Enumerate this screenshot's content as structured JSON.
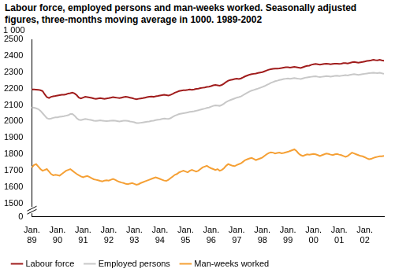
{
  "chart_data": {
    "type": "line",
    "title": "Labour force, employed persons and man-weeks worked. Seasonally adjusted figures, three-months moving average in 1000. 1989-2002",
    "y_label": "1 000",
    "categories": [
      "Jan. 89",
      null,
      null,
      null,
      null,
      null,
      null,
      null,
      null,
      null,
      null,
      null,
      "Jan. 90",
      null,
      null,
      null,
      null,
      null,
      null,
      null,
      null,
      null,
      null,
      null,
      "Jan. 91",
      null,
      null,
      null,
      null,
      null,
      null,
      null,
      null,
      null,
      null,
      null,
      "Jan. 92",
      null,
      null,
      null,
      null,
      null,
      null,
      null,
      null,
      null,
      null,
      null,
      "Jan. 93",
      null,
      null,
      null,
      null,
      null,
      null,
      null,
      null,
      null,
      null,
      null,
      "Jan. 94",
      null,
      null,
      null,
      null,
      null,
      null,
      null,
      null,
      null,
      null,
      null,
      "Jan. 95",
      null,
      null,
      null,
      null,
      null,
      null,
      null,
      null,
      null,
      null,
      null,
      "Jan. 96",
      null,
      null,
      null,
      null,
      null,
      null,
      null,
      null,
      null,
      null,
      null,
      "Jan. 97",
      null,
      null,
      null,
      null,
      null,
      null,
      null,
      null,
      null,
      null,
      null,
      "Jan. 98",
      null,
      null,
      null,
      null,
      null,
      null,
      null,
      null,
      null,
      null,
      null,
      "Jan. 99",
      null,
      null,
      null,
      null,
      null,
      null,
      null,
      null,
      null,
      null,
      null,
      "Jan. 00",
      null,
      null,
      null,
      null,
      null,
      null,
      null,
      null,
      null,
      null,
      null,
      "Jan. 01",
      null,
      null,
      null,
      null,
      null,
      null,
      null,
      null,
      null,
      null,
      null,
      "Jan. 02",
      null,
      null,
      null,
      null,
      null,
      null,
      null,
      null,
      null
    ],
    "series": [
      {
        "name": "Labour force",
        "color": "#a01c1c",
        "values": [
          2195,
          2195,
          2194,
          2193,
          2190,
          2185,
          2165,
          2148,
          2143,
          2150,
          2153,
          2155,
          2158,
          2160,
          2162,
          2163,
          2165,
          2170,
          2172,
          2175,
          2170,
          2160,
          2145,
          2140,
          2145,
          2150,
          2148,
          2146,
          2143,
          2140,
          2138,
          2140,
          2142,
          2140,
          2138,
          2140,
          2142,
          2145,
          2148,
          2146,
          2144,
          2142,
          2145,
          2148,
          2150,
          2148,
          2145,
          2142,
          2138,
          2135,
          2138,
          2140,
          2142,
          2145,
          2148,
          2150,
          2152,
          2150,
          2153,
          2155,
          2158,
          2160,
          2162,
          2160,
          2158,
          2162,
          2168,
          2175,
          2180,
          2185,
          2188,
          2190,
          2190,
          2192,
          2195,
          2193,
          2195,
          2198,
          2200,
          2203,
          2205,
          2207,
          2210,
          2212,
          2215,
          2220,
          2222,
          2220,
          2218,
          2222,
          2230,
          2240,
          2248,
          2252,
          2255,
          2258,
          2260,
          2258,
          2262,
          2268,
          2275,
          2280,
          2285,
          2288,
          2290,
          2292,
          2295,
          2298,
          2300,
          2305,
          2310,
          2315,
          2318,
          2320,
          2322,
          2322,
          2323,
          2325,
          2328,
          2330,
          2330,
          2328,
          2330,
          2332,
          2330,
          2328,
          2325,
          2330,
          2335,
          2338,
          2340,
          2345,
          2348,
          2350,
          2348,
          2346,
          2348,
          2350,
          2352,
          2350,
          2348,
          2350,
          2352,
          2352,
          2350,
          2352,
          2355,
          2355,
          2353,
          2356,
          2360,
          2362,
          2360,
          2358,
          2360,
          2362,
          2365,
          2368,
          2370,
          2372,
          2375,
          2373,
          2372,
          2375,
          2372,
          2370
        ]
      },
      {
        "name": "Employed persons",
        "color": "#c8c8c8",
        "values": [
          2085,
          2083,
          2080,
          2075,
          2065,
          2050,
          2035,
          2020,
          2015,
          2018,
          2022,
          2025,
          2025,
          2028,
          2030,
          2032,
          2035,
          2038,
          2045,
          2045,
          2035,
          2020,
          2010,
          2008,
          2012,
          2015,
          2013,
          2010,
          2008,
          2005,
          2003,
          2005,
          2007,
          2005,
          2003,
          2002,
          2003,
          2005,
          2006,
          2004,
          2002,
          2000,
          2002,
          2004,
          2005,
          2003,
          2000,
          1998,
          1995,
          1990,
          1990,
          1992,
          1994,
          1996,
          1998,
          2000,
          2003,
          2005,
          2008,
          2010,
          2012,
          2015,
          2018,
          2016,
          2015,
          2020,
          2028,
          2035,
          2040,
          2045,
          2048,
          2050,
          2052,
          2055,
          2058,
          2060,
          2062,
          2065,
          2068,
          2072,
          2075,
          2078,
          2082,
          2085,
          2090,
          2095,
          2098,
          2097,
          2095,
          2100,
          2108,
          2118,
          2125,
          2130,
          2135,
          2140,
          2145,
          2148,
          2152,
          2160,
          2168,
          2175,
          2182,
          2188,
          2192,
          2196,
          2200,
          2205,
          2210,
          2215,
          2222,
          2228,
          2235,
          2240,
          2245,
          2248,
          2252,
          2255,
          2258,
          2260,
          2262,
          2260,
          2262,
          2264,
          2262,
          2260,
          2258,
          2262,
          2266,
          2268,
          2270,
          2272,
          2274,
          2275,
          2272,
          2270,
          2272,
          2274,
          2276,
          2275,
          2273,
          2275,
          2277,
          2278,
          2276,
          2278,
          2280,
          2282,
          2280,
          2283,
          2286,
          2288,
          2286,
          2284,
          2286,
          2288,
          2290,
          2292,
          2294,
          2295,
          2297,
          2295,
          2294,
          2296,
          2293,
          2290
        ]
      },
      {
        "name": "Man-weeks worked",
        "color": "#f5a035",
        "values": [
          1720,
          1735,
          1740,
          1725,
          1710,
          1700,
          1705,
          1710,
          1695,
          1680,
          1672,
          1675,
          1673,
          1670,
          1680,
          1690,
          1700,
          1705,
          1710,
          1700,
          1690,
          1680,
          1672,
          1665,
          1660,
          1665,
          1668,
          1662,
          1655,
          1648,
          1645,
          1642,
          1638,
          1635,
          1640,
          1642,
          1640,
          1645,
          1650,
          1645,
          1638,
          1632,
          1628,
          1625,
          1620,
          1618,
          1622,
          1625,
          1620,
          1615,
          1618,
          1625,
          1630,
          1635,
          1640,
          1645,
          1650,
          1655,
          1660,
          1655,
          1650,
          1645,
          1640,
          1638,
          1645,
          1655,
          1665,
          1675,
          1680,
          1690,
          1695,
          1700,
          1695,
          1690,
          1700,
          1705,
          1700,
          1695,
          1700,
          1710,
          1720,
          1725,
          1730,
          1722,
          1715,
          1710,
          1705,
          1710,
          1700,
          1705,
          1715,
          1730,
          1740,
          1735,
          1730,
          1728,
          1735,
          1740,
          1745,
          1755,
          1765,
          1770,
          1775,
          1778,
          1772,
          1765,
          1770,
          1775,
          1780,
          1790,
          1800,
          1808,
          1812,
          1810,
          1805,
          1808,
          1810,
          1806,
          1808,
          1812,
          1815,
          1820,
          1825,
          1830,
          1820,
          1805,
          1795,
          1790,
          1795,
          1800,
          1798,
          1800,
          1802,
          1800,
          1795,
          1790,
          1795,
          1800,
          1805,
          1802,
          1798,
          1795,
          1800,
          1802,
          1798,
          1795,
          1790,
          1785,
          1790,
          1800,
          1810,
          1805,
          1800,
          1795,
          1790,
          1788,
          1782,
          1775,
          1770,
          1772,
          1778,
          1782,
          1785,
          1788,
          1788,
          1790
        ]
      }
    ],
    "ylim": [
      0,
      2500
    ],
    "yticks": [
      0,
      1500,
      1600,
      1700,
      1800,
      1900,
      2000,
      2100,
      2200,
      2300,
      2400,
      2500
    ],
    "grid": false,
    "legend": "bottom"
  }
}
